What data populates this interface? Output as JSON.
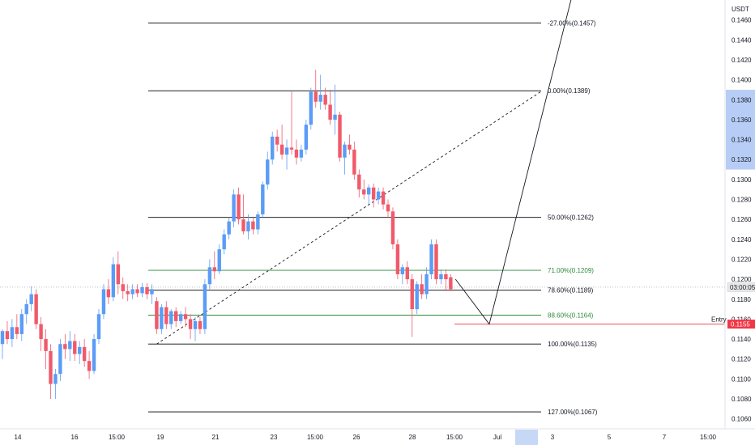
{
  "chart_data": {
    "type": "candlestick",
    "currency_label": "USDT",
    "price_axis": {
      "ylim": [
        0.105,
        0.148
      ],
      "ticks": [
        "0.1460",
        "0.1440",
        "0.1420",
        "0.1400",
        "0.1380",
        "0.1360",
        "0.1340",
        "0.1320",
        "0.1300",
        "0.1280",
        "0.1260",
        "0.1240",
        "0.1220",
        "0.1200",
        "0.1180",
        "0.1160",
        "0.1140",
        "0.1120",
        "0.1100",
        "0.1080",
        "0.1060"
      ]
    },
    "time_axis": {
      "ticks": [
        "14",
        "16",
        "15:00",
        "19",
        "21",
        "23",
        "15:00",
        "26",
        "28",
        "15:00",
        "Jul",
        "3",
        "5",
        "7",
        "15:00"
      ],
      "highlighted_tick_index": 11
    },
    "price_labels": {
      "current": "03:00:05",
      "entry": "0.1155",
      "entry_label": "Entry"
    },
    "price_highlight_range": [
      0.131,
      0.139
    ],
    "current_price": 0.1192,
    "entry_price": 0.1155,
    "fib_levels": [
      {
        "label": "-27.00%(0.1457)",
        "price": 0.1457,
        "color": "#000000"
      },
      {
        "label": "0.00%(0.1389)",
        "price": 0.1389,
        "color": "#000000"
      },
      {
        "label": "50.00%(0.1262)",
        "price": 0.1262,
        "color": "#000000"
      },
      {
        "label": "71.00%(0.1209)",
        "price": 0.1209,
        "color": "#2e8b3a"
      },
      {
        "label": "78.60%(0.1189)",
        "price": 0.1189,
        "color": "#000000"
      },
      {
        "label": "88.60%(0.1164)",
        "price": 0.1164,
        "color": "#2e8b3a"
      },
      {
        "label": "100.00%(0.1135)",
        "price": 0.1135,
        "color": "#000000"
      },
      {
        "label": "127.00%(0.1067)",
        "price": 0.1067,
        "color": "#000000"
      }
    ],
    "candles": [
      {
        "o": 0.1135,
        "h": 0.115,
        "l": 0.112,
        "c": 0.1148
      },
      {
        "o": 0.1148,
        "h": 0.1158,
        "l": 0.1135,
        "c": 0.114
      },
      {
        "o": 0.114,
        "h": 0.116,
        "l": 0.1132,
        "c": 0.1152
      },
      {
        "o": 0.1152,
        "h": 0.1165,
        "l": 0.114,
        "c": 0.1145
      },
      {
        "o": 0.1145,
        "h": 0.117,
        "l": 0.1138,
        "c": 0.1165
      },
      {
        "o": 0.1165,
        "h": 0.118,
        "l": 0.1155,
        "c": 0.1175
      },
      {
        "o": 0.1175,
        "h": 0.1193,
        "l": 0.1168,
        "c": 0.1185
      },
      {
        "o": 0.1185,
        "h": 0.119,
        "l": 0.115,
        "c": 0.1155
      },
      {
        "o": 0.1155,
        "h": 0.1162,
        "l": 0.1128,
        "c": 0.114
      },
      {
        "o": 0.114,
        "h": 0.115,
        "l": 0.111,
        "c": 0.1128
      },
      {
        "o": 0.1128,
        "h": 0.1135,
        "l": 0.108,
        "c": 0.1095
      },
      {
        "o": 0.1095,
        "h": 0.111,
        "l": 0.108,
        "c": 0.1105
      },
      {
        "o": 0.1105,
        "h": 0.114,
        "l": 0.1098,
        "c": 0.1135
      },
      {
        "o": 0.1135,
        "h": 0.1145,
        "l": 0.112,
        "c": 0.113
      },
      {
        "o": 0.113,
        "h": 0.1148,
        "l": 0.1118,
        "c": 0.1138
      },
      {
        "o": 0.1138,
        "h": 0.1145,
        "l": 0.1118,
        "c": 0.1125
      },
      {
        "o": 0.1125,
        "h": 0.1138,
        "l": 0.1115,
        "c": 0.1132
      },
      {
        "o": 0.1132,
        "h": 0.114,
        "l": 0.1112,
        "c": 0.1118
      },
      {
        "o": 0.1118,
        "h": 0.1128,
        "l": 0.11,
        "c": 0.1108
      },
      {
        "o": 0.1108,
        "h": 0.1145,
        "l": 0.1105,
        "c": 0.114
      },
      {
        "o": 0.114,
        "h": 0.117,
        "l": 0.1135,
        "c": 0.1165
      },
      {
        "o": 0.1165,
        "h": 0.1195,
        "l": 0.116,
        "c": 0.119
      },
      {
        "o": 0.119,
        "h": 0.12,
        "l": 0.1175,
        "c": 0.1182
      },
      {
        "o": 0.1182,
        "h": 0.1222,
        "l": 0.1178,
        "c": 0.1215
      },
      {
        "o": 0.1215,
        "h": 0.1228,
        "l": 0.1185,
        "c": 0.1195
      },
      {
        "o": 0.1195,
        "h": 0.1202,
        "l": 0.118,
        "c": 0.1188
      },
      {
        "o": 0.1188,
        "h": 0.1195,
        "l": 0.1178,
        "c": 0.1185
      },
      {
        "o": 0.1185,
        "h": 0.1195,
        "l": 0.118,
        "c": 0.119
      },
      {
        "o": 0.119,
        "h": 0.1195,
        "l": 0.1182,
        "c": 0.1186
      },
      {
        "o": 0.1186,
        "h": 0.1196,
        "l": 0.1182,
        "c": 0.1192
      },
      {
        "o": 0.1192,
        "h": 0.1196,
        "l": 0.118,
        "c": 0.1185
      },
      {
        "o": 0.1185,
        "h": 0.1195,
        "l": 0.1175,
        "c": 0.119
      },
      {
        "o": 0.1178,
        "h": 0.1182,
        "l": 0.1145,
        "c": 0.115
      },
      {
        "o": 0.115,
        "h": 0.1175,
        "l": 0.1145,
        "c": 0.1172
      },
      {
        "o": 0.1172,
        "h": 0.1178,
        "l": 0.115,
        "c": 0.1155
      },
      {
        "o": 0.1155,
        "h": 0.117,
        "l": 0.115,
        "c": 0.1168
      },
      {
        "o": 0.1168,
        "h": 0.1172,
        "l": 0.1152,
        "c": 0.1158
      },
      {
        "o": 0.1158,
        "h": 0.1168,
        "l": 0.1155,
        "c": 0.1165
      },
      {
        "o": 0.1165,
        "h": 0.1172,
        "l": 0.1152,
        "c": 0.116
      },
      {
        "o": 0.116,
        "h": 0.1165,
        "l": 0.114,
        "c": 0.115
      },
      {
        "o": 0.115,
        "h": 0.1162,
        "l": 0.1138,
        "c": 0.1158
      },
      {
        "o": 0.1158,
        "h": 0.1162,
        "l": 0.1145,
        "c": 0.115
      },
      {
        "o": 0.115,
        "h": 0.12,
        "l": 0.1145,
        "c": 0.1195
      },
      {
        "o": 0.1195,
        "h": 0.122,
        "l": 0.119,
        "c": 0.1212
      },
      {
        "o": 0.1212,
        "h": 0.1228,
        "l": 0.12,
        "c": 0.1208
      },
      {
        "o": 0.1208,
        "h": 0.1235,
        "l": 0.1205,
        "c": 0.123
      },
      {
        "o": 0.123,
        "h": 0.125,
        "l": 0.1225,
        "c": 0.1245
      },
      {
        "o": 0.1245,
        "h": 0.1262,
        "l": 0.124,
        "c": 0.1258
      },
      {
        "o": 0.1258,
        "h": 0.129,
        "l": 0.1252,
        "c": 0.1285
      },
      {
        "o": 0.1285,
        "h": 0.1292,
        "l": 0.1255,
        "c": 0.126
      },
      {
        "o": 0.126,
        "h": 0.1285,
        "l": 0.1245,
        "c": 0.1248
      },
      {
        "o": 0.1248,
        "h": 0.1265,
        "l": 0.124,
        "c": 0.1258
      },
      {
        "o": 0.1258,
        "h": 0.1262,
        "l": 0.1245,
        "c": 0.125
      },
      {
        "o": 0.125,
        "h": 0.1268,
        "l": 0.1245,
        "c": 0.1265
      },
      {
        "o": 0.1265,
        "h": 0.1298,
        "l": 0.1262,
        "c": 0.1295
      },
      {
        "o": 0.1295,
        "h": 0.1328,
        "l": 0.129,
        "c": 0.132
      },
      {
        "o": 0.132,
        "h": 0.1348,
        "l": 0.1315,
        "c": 0.1343
      },
      {
        "o": 0.1343,
        "h": 0.135,
        "l": 0.1328,
        "c": 0.1335
      },
      {
        "o": 0.1335,
        "h": 0.1355,
        "l": 0.132,
        "c": 0.1325
      },
      {
        "o": 0.1325,
        "h": 0.134,
        "l": 0.131,
        "c": 0.1332
      },
      {
        "o": 0.1332,
        "h": 0.1388,
        "l": 0.1325,
        "c": 0.133
      },
      {
        "o": 0.133,
        "h": 0.134,
        "l": 0.1315,
        "c": 0.1322
      },
      {
        "o": 0.1322,
        "h": 0.1335,
        "l": 0.1318,
        "c": 0.133
      },
      {
        "o": 0.133,
        "h": 0.136,
        "l": 0.1325,
        "c": 0.1355
      },
      {
        "o": 0.1355,
        "h": 0.1392,
        "l": 0.135,
        "c": 0.1388
      },
      {
        "o": 0.1388,
        "h": 0.141,
        "l": 0.1372,
        "c": 0.1378
      },
      {
        "o": 0.1378,
        "h": 0.1405,
        "l": 0.137,
        "c": 0.1385
      },
      {
        "o": 0.1385,
        "h": 0.1392,
        "l": 0.137,
        "c": 0.1375
      },
      {
        "o": 0.1375,
        "h": 0.139,
        "l": 0.1355,
        "c": 0.136
      },
      {
        "o": 0.136,
        "h": 0.1395,
        "l": 0.1345,
        "c": 0.1365
      },
      {
        "o": 0.1365,
        "h": 0.1368,
        "l": 0.1318,
        "c": 0.1322
      },
      {
        "o": 0.1322,
        "h": 0.1338,
        "l": 0.1305,
        "c": 0.1335
      },
      {
        "o": 0.1335,
        "h": 0.1345,
        "l": 0.1325,
        "c": 0.133
      },
      {
        "o": 0.133,
        "h": 0.1338,
        "l": 0.13,
        "c": 0.1305
      },
      {
        "o": 0.1305,
        "h": 0.131,
        "l": 0.1282,
        "c": 0.129
      },
      {
        "o": 0.129,
        "h": 0.13,
        "l": 0.128,
        "c": 0.1285
      },
      {
        "o": 0.1285,
        "h": 0.1295,
        "l": 0.1275,
        "c": 0.1292
      },
      {
        "o": 0.1292,
        "h": 0.1296,
        "l": 0.1272,
        "c": 0.128
      },
      {
        "o": 0.128,
        "h": 0.1292,
        "l": 0.1275,
        "c": 0.1288
      },
      {
        "o": 0.1288,
        "h": 0.1292,
        "l": 0.127,
        "c": 0.1275
      },
      {
        "o": 0.1275,
        "h": 0.128,
        "l": 0.1262,
        "c": 0.1268
      },
      {
        "o": 0.1268,
        "h": 0.1272,
        "l": 0.123,
        "c": 0.1235
      },
      {
        "o": 0.1235,
        "h": 0.124,
        "l": 0.12,
        "c": 0.1205
      },
      {
        "o": 0.1205,
        "h": 0.1215,
        "l": 0.1195,
        "c": 0.1212
      },
      {
        "o": 0.1212,
        "h": 0.1218,
        "l": 0.1195,
        "c": 0.12
      },
      {
        "o": 0.12,
        "h": 0.1205,
        "l": 0.1142,
        "c": 0.117
      },
      {
        "o": 0.117,
        "h": 0.1198,
        "l": 0.1165,
        "c": 0.1195
      },
      {
        "o": 0.1195,
        "h": 0.1205,
        "l": 0.118,
        "c": 0.1185
      },
      {
        "o": 0.1185,
        "h": 0.1212,
        "l": 0.118,
        "c": 0.1205
      },
      {
        "o": 0.1205,
        "h": 0.124,
        "l": 0.12,
        "c": 0.1235
      },
      {
        "o": 0.1235,
        "h": 0.124,
        "l": 0.1195,
        "c": 0.12
      },
      {
        "o": 0.12,
        "h": 0.121,
        "l": 0.1195,
        "c": 0.1205
      },
      {
        "o": 0.1205,
        "h": 0.121,
        "l": 0.1188,
        "c": 0.12
      },
      {
        "o": 0.1202,
        "h": 0.1205,
        "l": 0.1188,
        "c": 0.119
      }
    ],
    "projection_path": [
      {
        "candle": 94,
        "price": 0.12
      },
      {
        "candle": 101,
        "price": 0.1155
      },
      {
        "candle": 119,
        "price": 0.15
      }
    ],
    "trend_line_dashed": [
      {
        "candle": 32,
        "price": 0.1135
      },
      {
        "candle": 112,
        "price": 0.1389
      }
    ],
    "colors": {
      "bull": "#5b9cf6",
      "bear": "#f05a6a",
      "entry": "#f23645",
      "highlight": "#c7d8f7",
      "highlight_price": "#b8cdf5",
      "fib_black": "#000000",
      "fib_green": "#2e8b3a"
    }
  }
}
